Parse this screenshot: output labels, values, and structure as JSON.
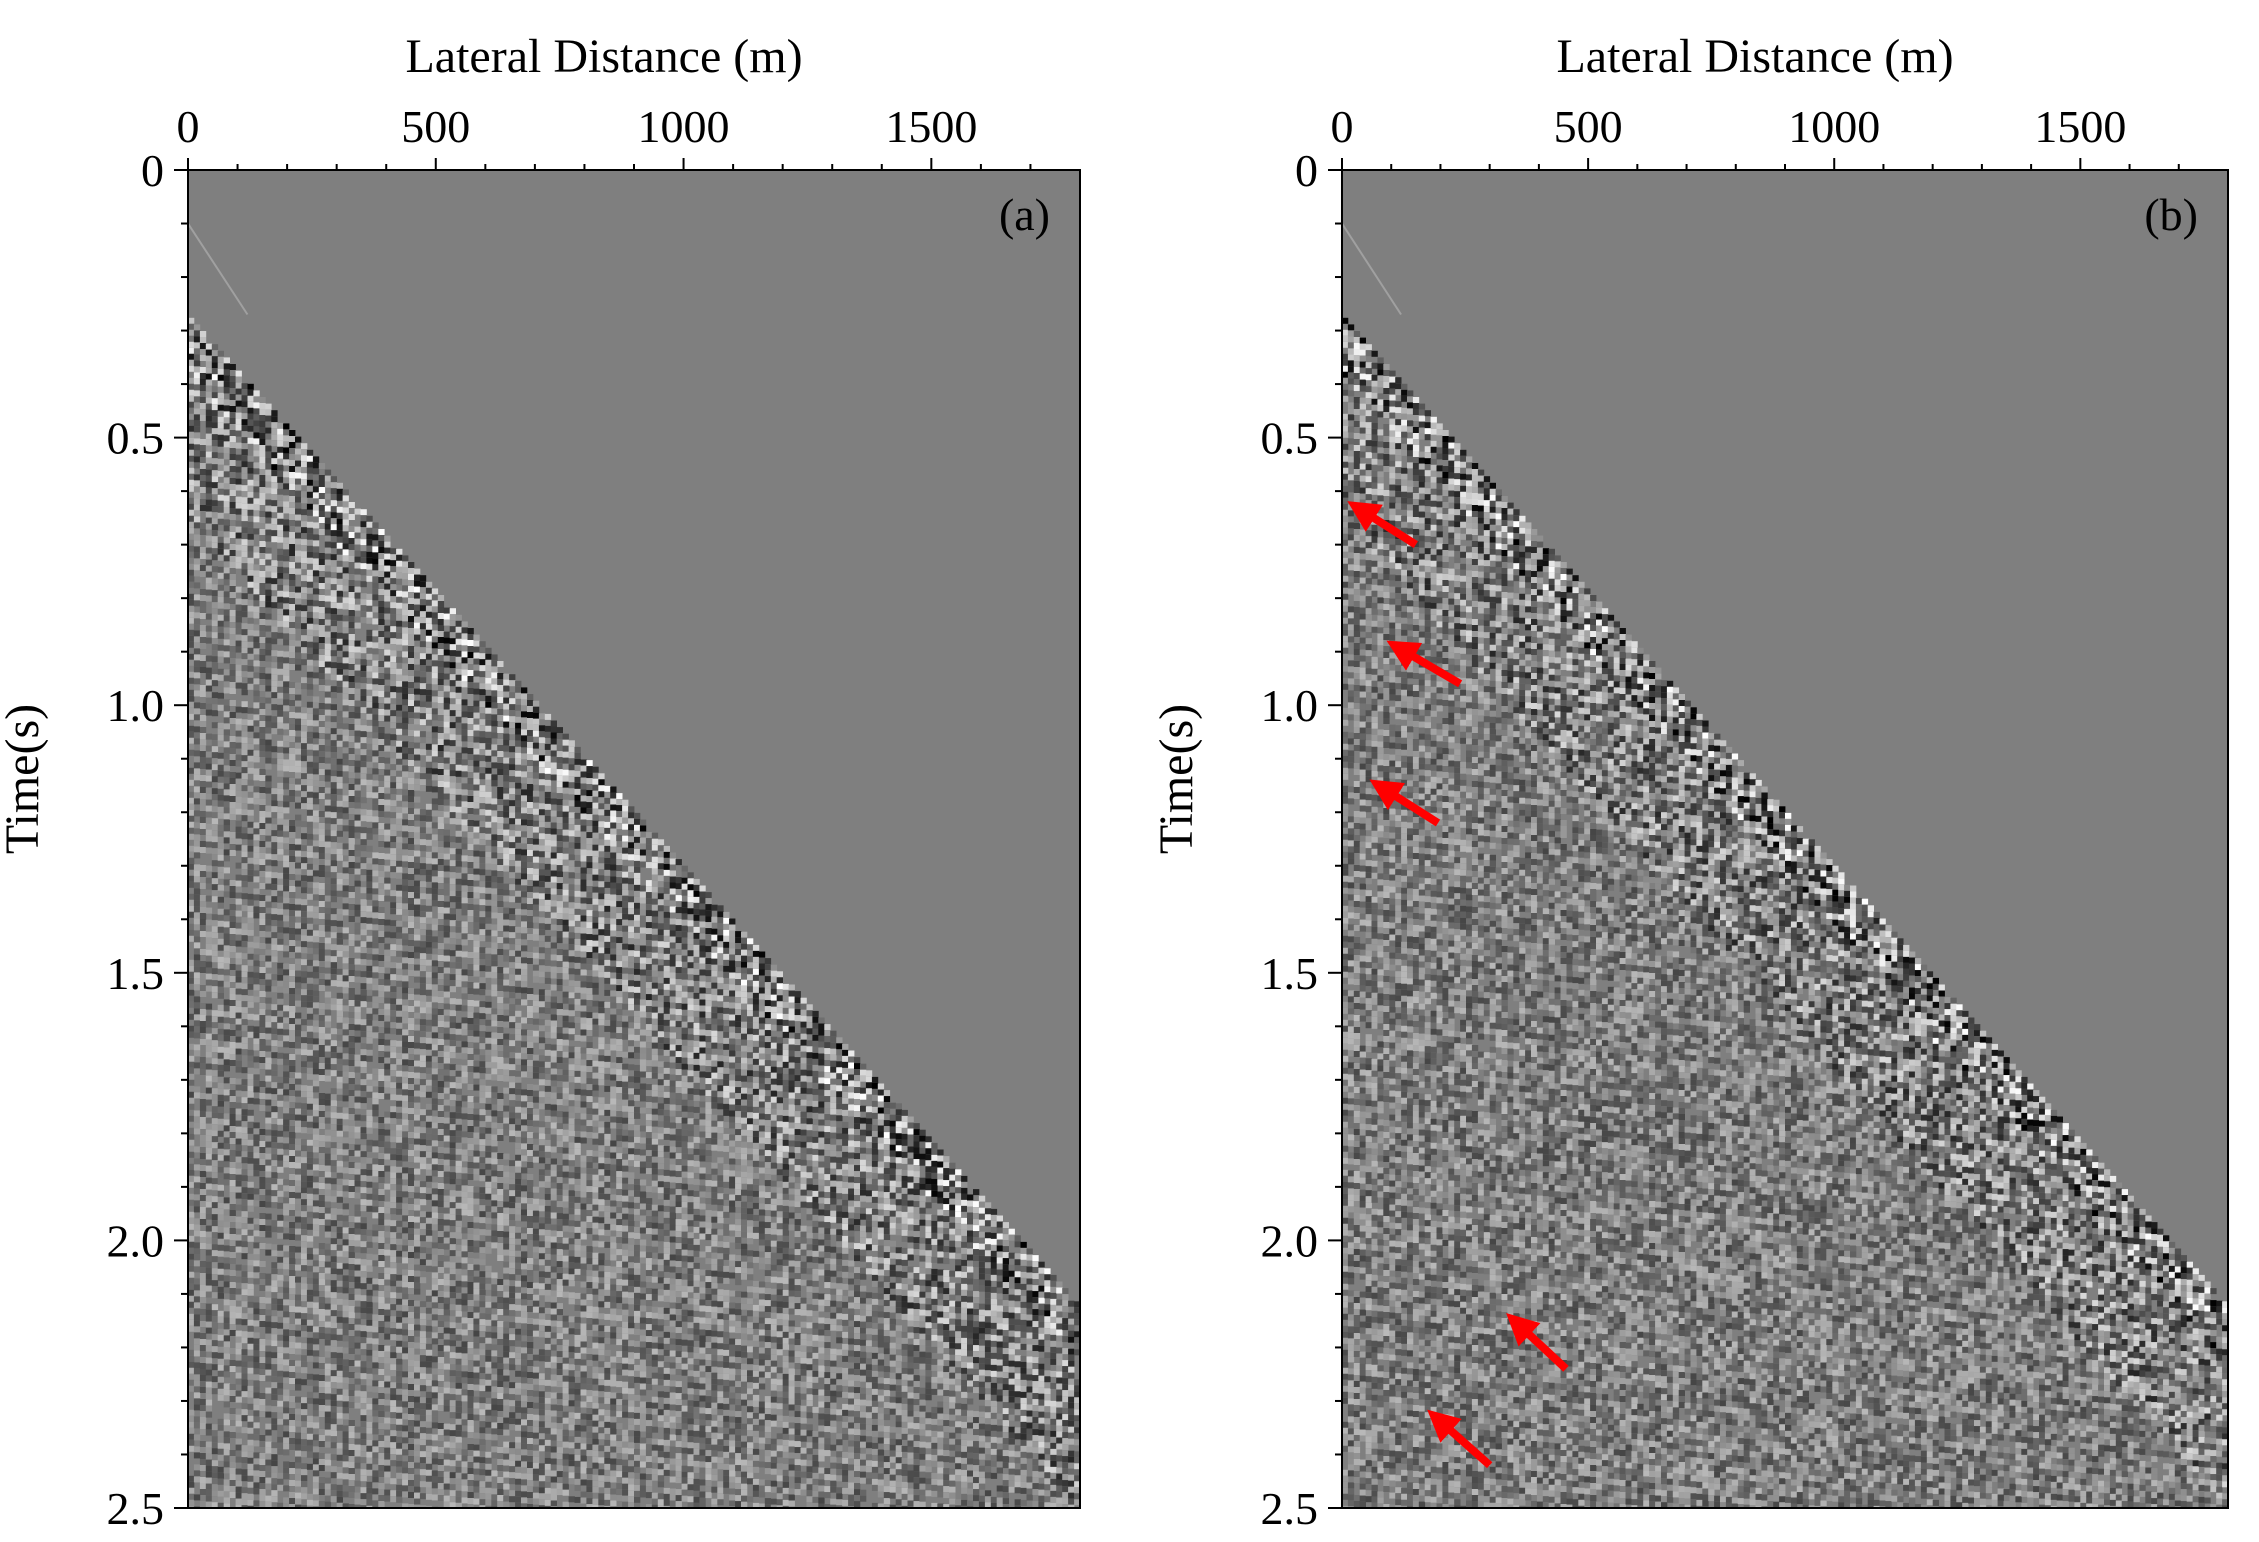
{
  "chart_data": [
    {
      "type": "heatmap",
      "panel_label": "(a)",
      "xlabel": "Lateral Distance (m)",
      "ylabel": "Time(s)",
      "xlim": [
        0,
        1800
      ],
      "ylim": [
        0,
        2.5
      ],
      "y_inverted": true,
      "x_axis_position": "top",
      "xticks": [
        0,
        500,
        1000,
        1500
      ],
      "xtick_labels": [
        "0",
        "500",
        "1000",
        "1500"
      ],
      "yticks": [
        0,
        0.5,
        1.0,
        1.5,
        2.0,
        2.5
      ],
      "ytick_labels": [
        "0",
        "0.5",
        "1.0",
        "1.5",
        "2.0",
        "2.5"
      ],
      "colormap": "gray",
      "background_color": "#7f7f7f",
      "first_break": {
        "x": [
          0,
          1800
        ],
        "t": [
          0.27,
          2.12
        ]
      },
      "arrows": []
    },
    {
      "type": "heatmap",
      "panel_label": "(b)",
      "xlabel": "Lateral Distance (m)",
      "ylabel": "Time(s)",
      "xlim": [
        0,
        1800
      ],
      "ylim": [
        0,
        2.5
      ],
      "y_inverted": true,
      "x_axis_position": "top",
      "xticks": [
        0,
        500,
        1000,
        1500
      ],
      "xtick_labels": [
        "0",
        "500",
        "1000",
        "1500"
      ],
      "yticks": [
        0,
        0.5,
        1.0,
        1.5,
        2.0,
        2.5
      ],
      "ytick_labels": [
        "0",
        "0.5",
        "1.0",
        "1.5",
        "2.0",
        "2.5"
      ],
      "colormap": "gray",
      "background_color": "#7f7f7f",
      "first_break": {
        "x": [
          0,
          1800
        ],
        "t": [
          0.27,
          2.12
        ]
      },
      "arrow_color": "#ff0000",
      "arrows": [
        {
          "x": 30,
          "t": 0.63,
          "x_tail": 150,
          "t_tail": 0.7
        },
        {
          "x": 110,
          "t": 0.89,
          "x_tail": 240,
          "t_tail": 0.96
        },
        {
          "x": 75,
          "t": 1.15,
          "x_tail": 195,
          "t_tail": 1.22
        },
        {
          "x": 350,
          "t": 2.15,
          "x_tail": 455,
          "t_tail": 2.24
        },
        {
          "x": 190,
          "t": 2.33,
          "x_tail": 300,
          "t_tail": 2.42
        }
      ]
    }
  ]
}
